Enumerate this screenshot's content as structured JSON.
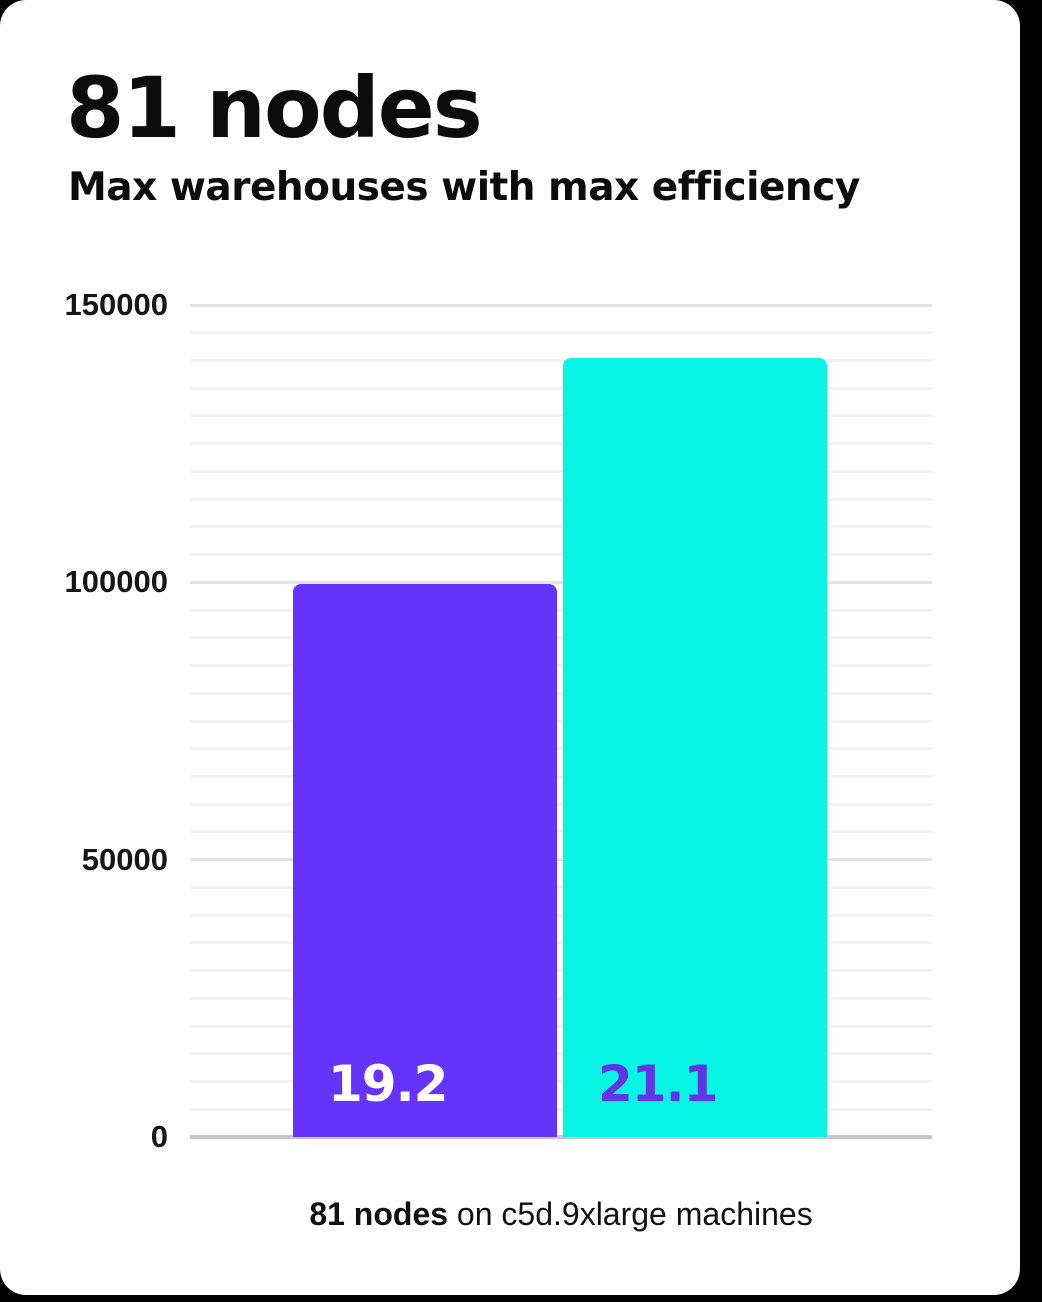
{
  "header": {
    "title": "81 nodes",
    "subtitle": "Max warehouses with max efficiency"
  },
  "caption": {
    "bold": "81 nodes",
    "rest": " on c5d.9xlarge machines"
  },
  "chart_data": {
    "type": "bar",
    "title": "81 nodes",
    "subtitle": "Max warehouses with max efficiency",
    "xlabel": "",
    "ylabel": "",
    "ylim": [
      0,
      150000
    ],
    "yticks": [
      0,
      50000,
      100000,
      150000
    ],
    "grid": {
      "visible": true,
      "minor_step": 5000,
      "major_step": 50000
    },
    "legend_position": "none",
    "bars": [
      {
        "label": "19.2",
        "value": 99700,
        "color": "#6633fa",
        "label_color": "#ffffff"
      },
      {
        "label": "21.1",
        "value": 140500,
        "color": "#08f4e4",
        "label_color": "#6035e6"
      }
    ],
    "caption": "81 nodes on c5d.9xlarge machines"
  },
  "colors": {
    "bar_primary": "#6633fa",
    "bar_secondary": "#08f4e4",
    "grid_minor": "#f2f2f2",
    "grid_major": "#e3e3e3",
    "axis_line": "#c6c6c6",
    "text": "#0c0c0c"
  }
}
